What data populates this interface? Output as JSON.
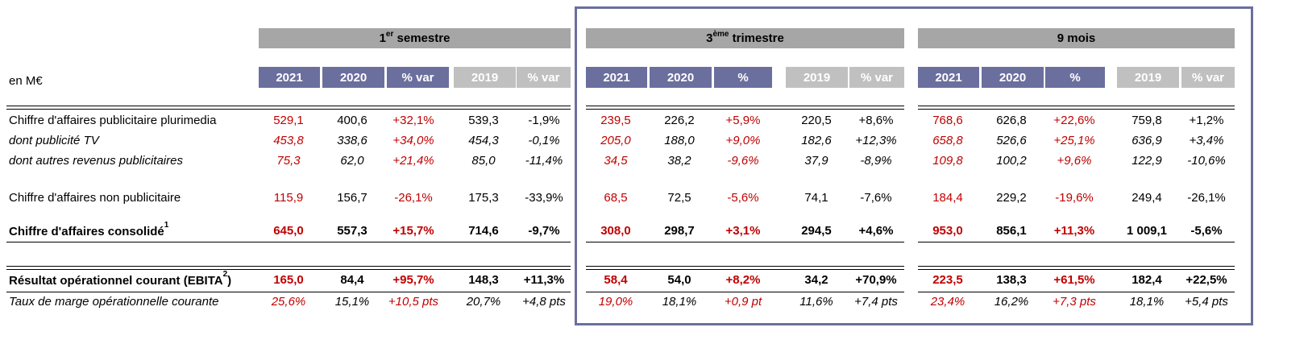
{
  "unit_label": "en M€",
  "bands": {
    "s1": {
      "pre": "1",
      "sup": "er",
      "post": " semestre"
    },
    "t3": {
      "pre": "3",
      "sup": "ème",
      "post": " trimestre"
    },
    "m9": {
      "pre": "",
      "sup": "",
      "post": "9 mois"
    }
  },
  "headers": {
    "s1": [
      "2021",
      "2020",
      "% var",
      "2019",
      "% var"
    ],
    "t3": [
      "2021",
      "2020",
      "%",
      "2019",
      "% var"
    ],
    "m9": [
      "2021",
      "2020",
      "%",
      "2019",
      "% var"
    ]
  },
  "rows": [
    {
      "label": "Chiffre d'affaires publicitaire plurimedia",
      "sup": "",
      "values": [
        "529,1",
        "400,6",
        "+32,1%",
        "539,3",
        "-1,9%",
        "239,5",
        "226,2",
        "+5,9%",
        "220,5",
        "+8,6%",
        "768,6",
        "626,8",
        "+22,6%",
        "759,8",
        "+1,2%"
      ]
    },
    {
      "label": "dont publicité TV",
      "sup": "",
      "values": [
        "453,8",
        "338,6",
        "+34,0%",
        "454,3",
        "-0,1%",
        "205,0",
        "188,0",
        "+9,0%",
        "182,6",
        "+12,3%",
        "658,8",
        "526,6",
        "+25,1%",
        "636,9",
        "+3,4%"
      ]
    },
    {
      "label": "dont autres revenus publicitaires",
      "sup": "",
      "values": [
        "75,3",
        "62,0",
        "+21,4%",
        "85,0",
        "-11,4%",
        "34,5",
        "38,2",
        "-9,6%",
        "37,9",
        "-8,9%",
        "109,8",
        "100,2",
        "+9,6%",
        "122,9",
        "-10,6%"
      ]
    },
    {
      "label": "Chiffre d'affaires non publicitaire",
      "sup": "",
      "values": [
        "115,9",
        "156,7",
        "-26,1%",
        "175,3",
        "-33,9%",
        "68,5",
        "72,5",
        "-5,6%",
        "74,1",
        "-7,6%",
        "184,4",
        "229,2",
        "-19,6%",
        "249,4",
        "-26,1%"
      ]
    },
    {
      "label": "Chiffre d'affaires consolidé",
      "sup": "1",
      "values": [
        "645,0",
        "557,3",
        "+15,7%",
        "714,6",
        "-9,7%",
        "308,0",
        "298,7",
        "+3,1%",
        "294,5",
        "+4,6%",
        "953,0",
        "856,1",
        "+11,3%",
        "1 009,1",
        "-5,6%"
      ]
    },
    {
      "label": "Résultat opérationnel courant (EBITA",
      "sup": "2",
      "label_tail": ")",
      "values": [
        "165,0",
        "84,4",
        "+95,7%",
        "148,3",
        "+11,3%",
        "58,4",
        "54,0",
        "+8,2%",
        "34,2",
        "+70,9%",
        "223,5",
        "138,3",
        "+61,5%",
        "182,4",
        "+22,5%"
      ]
    },
    {
      "label": "Taux de marge opérationnelle courante",
      "sup": "",
      "values": [
        "25,6%",
        "15,1%",
        "+10,5 pts",
        "20,7%",
        "+4,8 pts",
        "19,0%",
        "18,1%",
        "+0,9 pt",
        "11,6%",
        "+7,4 pts",
        "23,4%",
        "16,2%",
        "+7,3 pts",
        "18,1%",
        "+5,4 pts"
      ]
    }
  ],
  "colors": {
    "header_dark": "#6b6f9e",
    "header_light": "#c0c0c0",
    "band": "#a6a6a6",
    "red": "#c00000"
  }
}
